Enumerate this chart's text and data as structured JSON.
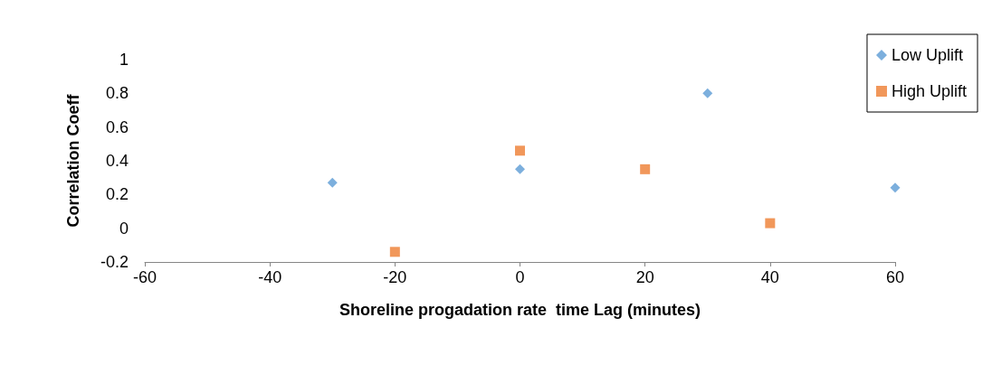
{
  "chart_data": {
    "type": "scatter",
    "xlabel": "Shoreline progadation rate  time Lag (minutes)",
    "ylabel": "Correlation Coeff",
    "xlim": [
      -60,
      60
    ],
    "xticks": [
      -60,
      -40,
      -20,
      0,
      20,
      40,
      60
    ],
    "ylim": [
      -0.2,
      1
    ],
    "yticks": [
      -0.2,
      0,
      0.2,
      0.4,
      0.6,
      0.8,
      1
    ],
    "grid": false,
    "legend": "top right",
    "series": [
      {
        "name": "Low Uplift",
        "color": "#5b9bd5",
        "marker": "diamond",
        "x": [
          -30,
          0,
          30,
          60
        ],
        "values": [
          0.27,
          0.35,
          0.8,
          0.24
        ]
      },
      {
        "name": "High Uplift",
        "color": "#ed7d31",
        "marker": "square",
        "x": [
          -20,
          0,
          20,
          40
        ],
        "values": [
          -0.14,
          0.46,
          0.35,
          0.03
        ]
      }
    ]
  }
}
